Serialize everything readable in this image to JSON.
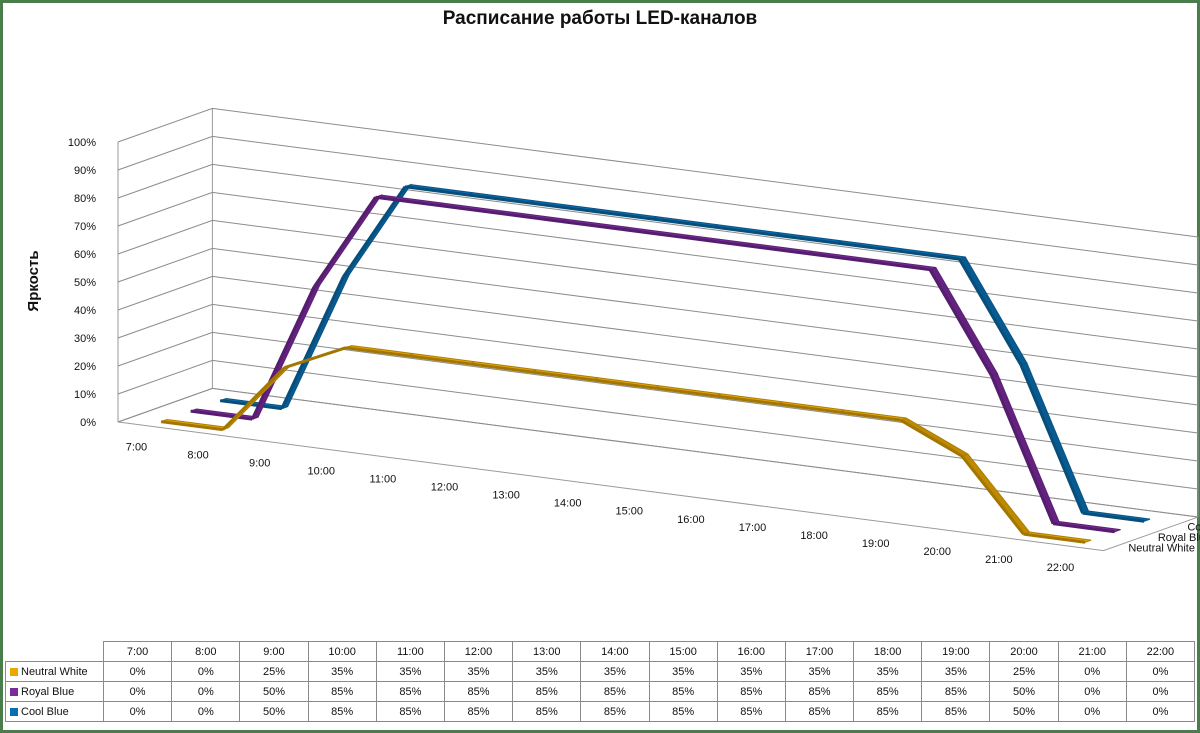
{
  "chart_data": {
    "type": "line",
    "title": "Расписание работы LED-каналов",
    "ylabel": "Яркость",
    "xlabel": "",
    "ylim": [
      0,
      100
    ],
    "y_ticks": [
      "0%",
      "10%",
      "20%",
      "30%",
      "40%",
      "50%",
      "60%",
      "70%",
      "80%",
      "90%",
      "100%"
    ],
    "categories": [
      "7:00",
      "8:00",
      "9:00",
      "10:00",
      "11:00",
      "12:00",
      "13:00",
      "14:00",
      "15:00",
      "16:00",
      "17:00",
      "18:00",
      "19:00",
      "20:00",
      "21:00",
      "22:00"
    ],
    "grid": true,
    "three_d": true,
    "series": [
      {
        "name": "Neutral White",
        "color": "#e8a800",
        "values": [
          0,
          0,
          25,
          35,
          35,
          35,
          35,
          35,
          35,
          35,
          35,
          35,
          35,
          25,
          0,
          0
        ],
        "cells": [
          "0%",
          "0%",
          "25%",
          "35%",
          "35%",
          "35%",
          "35%",
          "35%",
          "35%",
          "35%",
          "35%",
          "35%",
          "35%",
          "25%",
          "0%",
          "0%"
        ]
      },
      {
        "name": "Royal Blue",
        "color": "#7a2a9c",
        "values": [
          0,
          0,
          50,
          85,
          85,
          85,
          85,
          85,
          85,
          85,
          85,
          85,
          85,
          50,
          0,
          0
        ],
        "cells": [
          "0%",
          "0%",
          "50%",
          "85%",
          "85%",
          "85%",
          "85%",
          "85%",
          "85%",
          "85%",
          "85%",
          "85%",
          "85%",
          "50%",
          "0%",
          "0%"
        ]
      },
      {
        "name": "Cool Blue",
        "color": "#0a6fb0",
        "values": [
          0,
          0,
          50,
          85,
          85,
          85,
          85,
          85,
          85,
          85,
          85,
          85,
          85,
          50,
          0,
          0
        ],
        "cells": [
          "0%",
          "0%",
          "50%",
          "85%",
          "85%",
          "85%",
          "85%",
          "85%",
          "85%",
          "85%",
          "85%",
          "85%",
          "85%",
          "50%",
          "0%",
          "0%"
        ]
      }
    ]
  }
}
